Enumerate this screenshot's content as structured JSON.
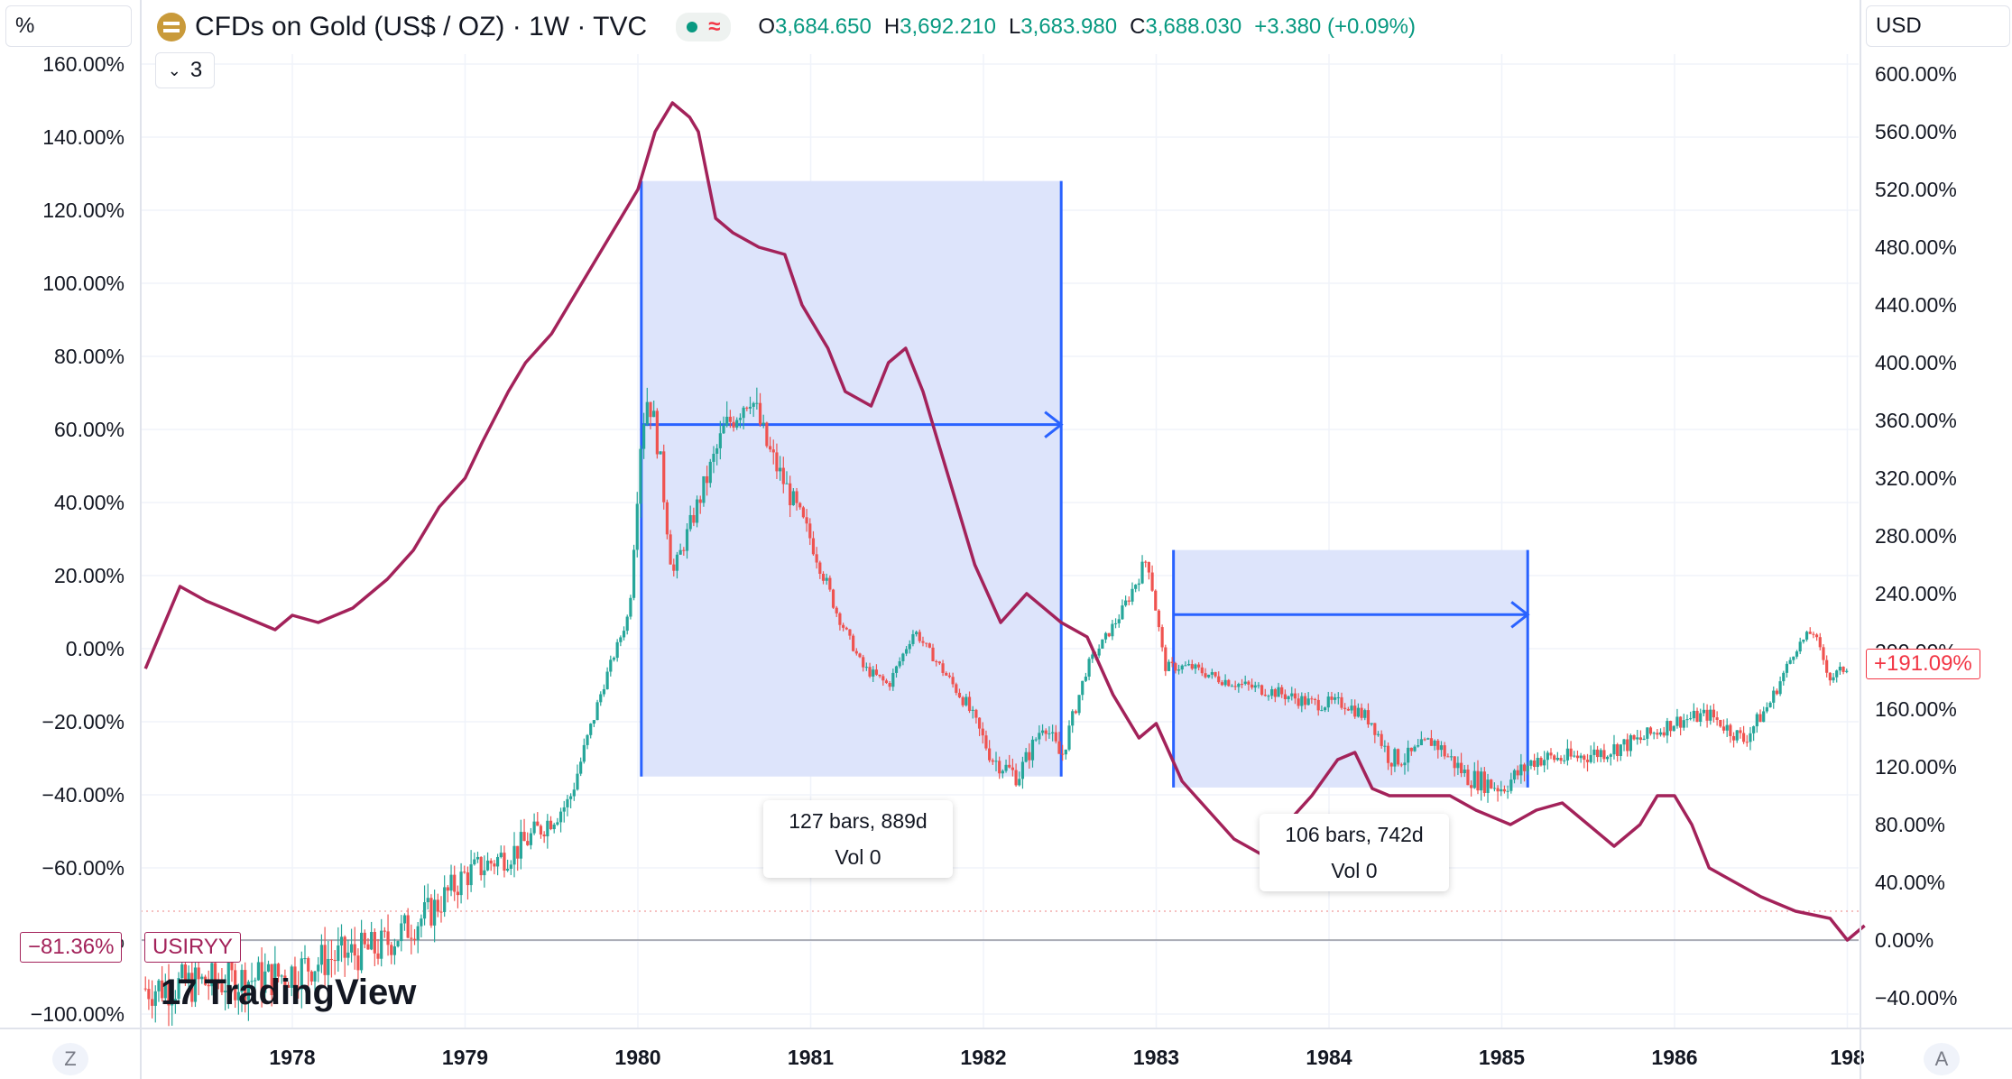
{
  "header": {
    "scale_button": "%",
    "symbol_title": "CFDs on Gold (US$ / OZ) · 1W · TVC",
    "indicator_count": "3",
    "approx_symbol": "≈",
    "ohlc": {
      "o_label": "O",
      "o_value": "3,684.650",
      "h_label": "H",
      "h_value": "3,692.210",
      "l_label": "L",
      "l_value": "3,683.980",
      "c_label": "C",
      "c_value": "3,688.030",
      "change": "+3.380 (+0.09%)"
    },
    "currency": "USD"
  },
  "left_axis_labels": [
    "160.00%",
    "140.00%",
    "120.00%",
    "100.00%",
    "80.00%",
    "60.00%",
    "40.00%",
    "20.00%",
    "0.00%",
    "−20.00%",
    "−40.00%",
    "−60.00%",
    "−80.00%",
    "−100.00%"
  ],
  "right_axis_labels": [
    "600.00%",
    "560.00%",
    "520.00%",
    "480.00%",
    "440.00%",
    "400.00%",
    "360.00%",
    "320.00%",
    "280.00%",
    "240.00%",
    "200.00%",
    "160.00%",
    "120.00%",
    "80.00%",
    "40.00%",
    "0.00%",
    "−40.00%"
  ],
  "x_axis_labels": [
    "1978",
    "1979",
    "1980",
    "1981",
    "1982",
    "1983",
    "1984",
    "1985",
    "1986",
    "198"
  ],
  "price_tag_left": "−81.36%",
  "series_tag": "USIRYY",
  "price_tag_right": "+191.09%",
  "measure_1": {
    "bars": "127 bars, 889d",
    "vol": "Vol 0"
  },
  "measure_2": {
    "bars": "106 bars, 742d",
    "vol": "Vol 0"
  },
  "watermark": "TradingView",
  "corner_left": "Z",
  "corner_right": "A",
  "colors": {
    "line": "#a3225a",
    "up": "#26a69a",
    "down": "#ef5350",
    "measure_fill": "#dbe3fb",
    "measure_line": "#2962ff",
    "right_tag": "#f23645",
    "axis_text": "#131722",
    "ohlc": "#089981"
  },
  "chart_data": {
    "type": "line",
    "title": "CFDs on Gold (US$ / OZ) · 1W · TVC",
    "x_range": [
      1977.15,
      1987.1
    ],
    "series": [
      {
        "name": "USIRYY",
        "axis": "right",
        "unit": "%",
        "x": [
          1977.15,
          1977.35,
          1977.5,
          1977.7,
          1977.9,
          1978.0,
          1978.15,
          1978.35,
          1978.55,
          1978.7,
          1978.85,
          1979.0,
          1979.1,
          1979.25,
          1979.35,
          1979.5,
          1979.6,
          1979.7,
          1979.8,
          1979.9,
          1980.0,
          1980.1,
          1980.2,
          1980.3,
          1980.35,
          1980.45,
          1980.55,
          1980.7,
          1980.85,
          1980.95,
          1981.1,
          1981.2,
          1981.35,
          1981.45,
          1981.55,
          1981.65,
          1981.75,
          1981.85,
          1981.95,
          1982.1,
          1982.25,
          1982.45,
          1982.6,
          1982.75,
          1982.9,
          1983.0,
          1983.15,
          1983.3,
          1983.45,
          1983.6,
          1983.75,
          1983.9,
          1984.05,
          1984.15,
          1984.25,
          1984.35,
          1984.5,
          1984.7,
          1984.85,
          1985.05,
          1985.2,
          1985.35,
          1985.5,
          1985.65,
          1985.8,
          1985.9,
          1986.0,
          1986.1,
          1986.2,
          1986.35,
          1986.5,
          1986.7,
          1986.9,
          1987.0,
          1987.1
        ],
        "y": [
          188,
          245,
          235,
          225,
          215,
          225,
          220,
          230,
          250,
          270,
          300,
          320,
          345,
          380,
          400,
          420,
          440,
          460,
          480,
          500,
          520,
          560,
          580,
          570,
          560,
          500,
          490,
          480,
          475,
          440,
          410,
          380,
          370,
          400,
          410,
          380,
          340,
          300,
          260,
          220,
          240,
          220,
          210,
          170,
          140,
          150,
          110,
          90,
          70,
          60,
          80,
          100,
          125,
          130,
          105,
          100,
          100,
          100,
          90,
          80,
          90,
          95,
          80,
          65,
          80,
          100,
          100,
          80,
          50,
          40,
          30,
          20,
          15,
          0,
          10
        ]
      },
      {
        "name": "CFDs on Gold (US$ / OZ)",
        "axis": "left",
        "unit": "%",
        "x": [
          1977.15,
          1977.6,
          1977.9,
          1978.2,
          1978.5,
          1978.8,
          1979.0,
          1979.3,
          1979.6,
          1979.8,
          1979.95,
          1980.02,
          1980.06,
          1980.12,
          1980.2,
          1980.35,
          1980.5,
          1980.65,
          1980.75,
          1980.9,
          1981.0,
          1981.15,
          1981.3,
          1981.45,
          1981.6,
          1981.75,
          1981.9,
          1982.05,
          1982.2,
          1982.35,
          1982.45,
          1982.6,
          1982.8,
          1982.95,
          1983.05,
          1983.2,
          1983.35,
          1983.5,
          1983.7,
          1983.9,
          1984.1,
          1984.25,
          1984.35,
          1984.45,
          1984.6,
          1984.8,
          1985.0,
          1985.2,
          1985.4,
          1985.6,
          1985.8,
          1986.0,
          1986.2,
          1986.4,
          1986.55,
          1986.7,
          1986.8,
          1986.9,
          1987.0
        ],
        "y": [
          -93,
          -91,
          -90,
          -85,
          -82,
          -72,
          -62,
          -55,
          -42,
          -10,
          10,
          60,
          70,
          55,
          20,
          40,
          60,
          70,
          55,
          40,
          30,
          10,
          -5,
          -10,
          5,
          -5,
          -15,
          -30,
          -35,
          -20,
          -30,
          -5,
          10,
          25,
          -5,
          -5,
          -8,
          -10,
          -12,
          -15,
          -15,
          -20,
          -30,
          -30,
          -25,
          -35,
          -38,
          -30,
          -30,
          -28,
          -25,
          -20,
          -18,
          -25,
          -15,
          0,
          5,
          -8,
          -5
        ]
      }
    ],
    "left_axis": {
      "range": [
        -100,
        160
      ],
      "ticks": [
        160,
        140,
        120,
        100,
        80,
        60,
        40,
        20,
        0,
        -20,
        -40,
        -60,
        -80,
        -100
      ]
    },
    "right_axis": {
      "range": [
        -40,
        600
      ],
      "ticks": [
        600,
        560,
        520,
        480,
        440,
        400,
        360,
        320,
        280,
        240,
        200,
        160,
        120,
        80,
        40,
        0,
        -40
      ]
    },
    "x_ticks": [
      1978,
      1979,
      1980,
      1981,
      1982,
      1983,
      1984,
      1985,
      1986
    ],
    "measurements": [
      {
        "from": 1980.02,
        "to": 1982.45,
        "low": -35,
        "high": 128,
        "bars": 127,
        "days": 889
      },
      {
        "from": 1983.1,
        "to": 1985.15,
        "low": -38,
        "high": 27,
        "bars": 106,
        "days": 742
      }
    ],
    "grid": true
  }
}
